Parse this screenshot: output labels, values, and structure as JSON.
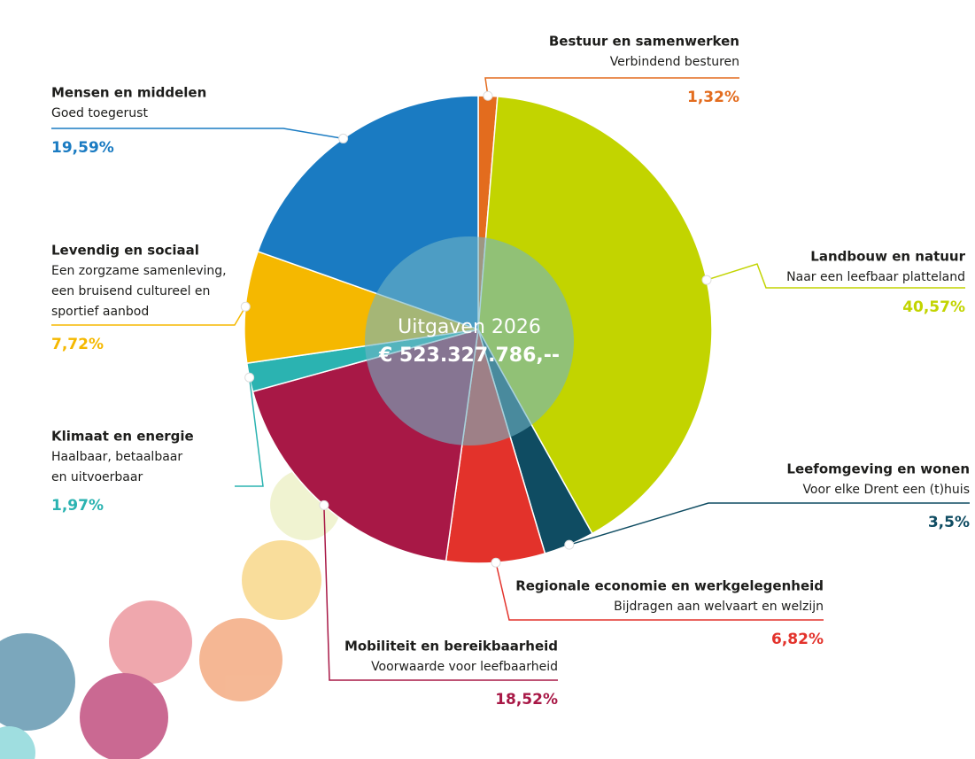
{
  "chart_data": {
    "type": "pie",
    "center_title": "Uitgaven 2026",
    "center_value": "€ 523.327.786,--",
    "categories": [
      "Bestuur en samenwerken",
      "Landbouw en natuur",
      "Leefomgeving en wonen",
      "Regionale economie en werkgelegenheid",
      "Mobiliteit en bereikbaarheid",
      "Klimaat en energie",
      "Levendig en sociaal",
      "Mensen en middelen"
    ],
    "subtitles": [
      [
        "Verbindend besturen"
      ],
      [
        "Naar een leefbaar platteland"
      ],
      [
        "Voor elke Drent een (t)huis"
      ],
      [
        "Bijdragen aan welvaart en welzijn"
      ],
      [
        "Voorwaarde voor leefbaarheid"
      ],
      [
        "Haalbaar, betaalbaar",
        "en uitvoerbaar"
      ],
      [
        "Een zorgzame samenleving,",
        "een bruisend cultureel en",
        "sportief aanbod"
      ],
      [
        "Goed toegerust"
      ]
    ],
    "values": [
      1.32,
      40.57,
      3.5,
      6.82,
      18.52,
      1.97,
      7.72,
      19.59
    ],
    "value_labels": [
      "1,32%",
      "40,57%",
      "3,5%",
      "6,82%",
      "18,52%",
      "1,97%",
      "7,72%",
      "19,59%"
    ],
    "colors": [
      "#e36c1e",
      "#c2d400",
      "#0f4c62",
      "#e3322b",
      "#a81846",
      "#2bb3b1",
      "#f5b800",
      "#1a7bc2"
    ]
  }
}
